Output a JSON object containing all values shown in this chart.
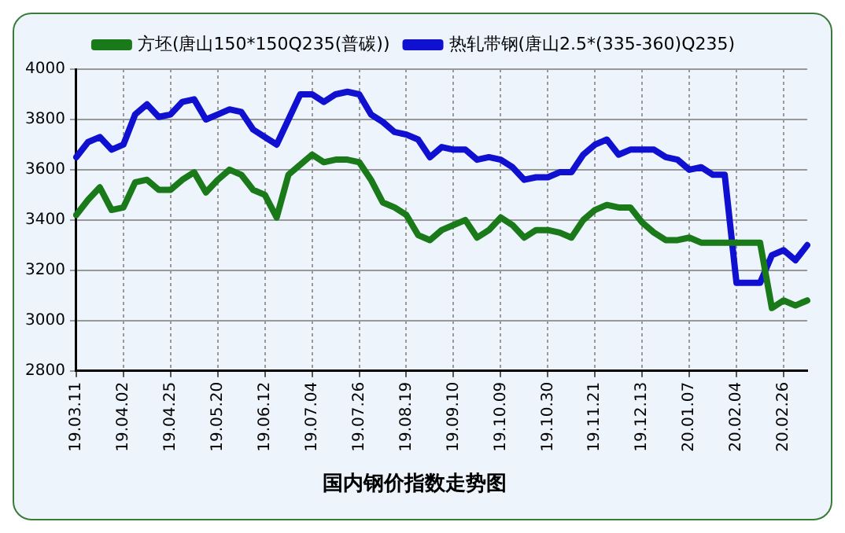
{
  "chart_data": {
    "type": "line",
    "title": "国内钢价指数走势图",
    "categories": [
      "19.03.11",
      null,
      null,
      null,
      "19.04.02",
      null,
      null,
      null,
      "19.04.25",
      null,
      null,
      null,
      "19.05.20",
      null,
      null,
      null,
      "19.06.12",
      null,
      null,
      null,
      "19.07.04",
      null,
      null,
      null,
      "19.07.26",
      null,
      null,
      null,
      "19.08.19",
      null,
      null,
      null,
      "19.09.10",
      null,
      null,
      null,
      "19.10.09",
      null,
      null,
      null,
      "19.10.30",
      null,
      null,
      null,
      "19.11.21",
      null,
      null,
      null,
      "19.12.13",
      null,
      null,
      null,
      "20.01.07",
      null,
      null,
      null,
      "20.02.04",
      null,
      null,
      null,
      "20.02.26",
      null,
      null
    ],
    "series": [
      {
        "name": "方坯(唐山150*150Q235(普碳))",
        "color": "#1a7a1a",
        "values": [
          3420,
          3480,
          3530,
          3440,
          3450,
          3550,
          3560,
          3520,
          3520,
          3560,
          3590,
          3510,
          3560,
          3600,
          3580,
          3520,
          3500,
          3410,
          3580,
          3620,
          3660,
          3630,
          3640,
          3640,
          3630,
          3560,
          3470,
          3450,
          3420,
          3340,
          3320,
          3360,
          3380,
          3400,
          3330,
          3360,
          3410,
          3380,
          3330,
          3360,
          3360,
          3350,
          3330,
          3400,
          3440,
          3460,
          3450,
          3450,
          3390,
          3350,
          3320,
          3320,
          3330,
          3310,
          3310,
          3310,
          3310,
          3310,
          3310,
          3050,
          3080,
          3060,
          3080
        ]
      },
      {
        "name": "热轧带钢(唐山2.5*(335-360)Q235)",
        "color": "#1010d0",
        "values": [
          3650,
          3710,
          3730,
          3680,
          3700,
          3820,
          3860,
          3810,
          3820,
          3870,
          3880,
          3800,
          3820,
          3840,
          3830,
          3760,
          3730,
          3700,
          3800,
          3900,
          3900,
          3870,
          3900,
          3910,
          3900,
          3820,
          3790,
          3750,
          3740,
          3720,
          3650,
          3690,
          3680,
          3680,
          3640,
          3650,
          3640,
          3610,
          3560,
          3570,
          3570,
          3590,
          3590,
          3660,
          3700,
          3720,
          3660,
          3680,
          3680,
          3680,
          3650,
          3640,
          3600,
          3610,
          3580,
          3580,
          3150,
          3150,
          3150,
          3260,
          3280,
          3240,
          3300
        ]
      }
    ],
    "ylim": [
      2800,
      4000
    ],
    "yticks": [
      2800,
      3000,
      3200,
      3400,
      3600,
      3800,
      4000
    ],
    "grid": true,
    "legend": "top",
    "marker": "none",
    "line_style": "solid"
  }
}
